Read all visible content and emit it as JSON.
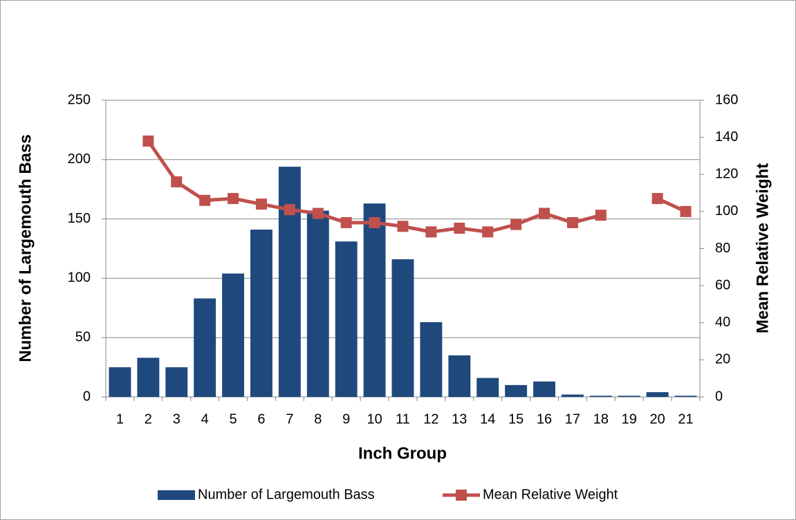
{
  "chart_data": {
    "type": "bar",
    "x_label": "Inch Group",
    "y_label": "Number of Largemouth Bass",
    "y2_label": "Mean Relative Weight",
    "categories": [
      "1",
      "2",
      "3",
      "4",
      "5",
      "6",
      "7",
      "8",
      "9",
      "10",
      "11",
      "12",
      "13",
      "14",
      "15",
      "16",
      "17",
      "18",
      "19",
      "20",
      "21"
    ],
    "series": [
      {
        "name": "Number of Largemouth Bass",
        "type": "bar",
        "color": "#1f497d",
        "axis": "y",
        "values": [
          25,
          33,
          25,
          83,
          104,
          141,
          194,
          157,
          131,
          163,
          116,
          63,
          35,
          16,
          10,
          13,
          2,
          1,
          1,
          4,
          1
        ]
      },
      {
        "name": "Mean Relative Weight",
        "type": "line",
        "color": "#c0504d",
        "axis": "y2",
        "values": [
          null,
          138,
          116,
          106,
          107,
          104,
          101,
          99,
          94,
          94,
          92,
          89,
          91,
          89,
          93,
          99,
          94,
          98,
          null,
          107,
          100
        ]
      }
    ],
    "ylim": [
      0,
      250
    ],
    "yticks": [
      0,
      50,
      100,
      150,
      200,
      250
    ],
    "y2lim": [
      0,
      160
    ],
    "y2ticks": [
      0,
      20,
      40,
      60,
      80,
      100,
      120,
      140,
      160
    ],
    "grid": true,
    "legend": "bottom"
  }
}
